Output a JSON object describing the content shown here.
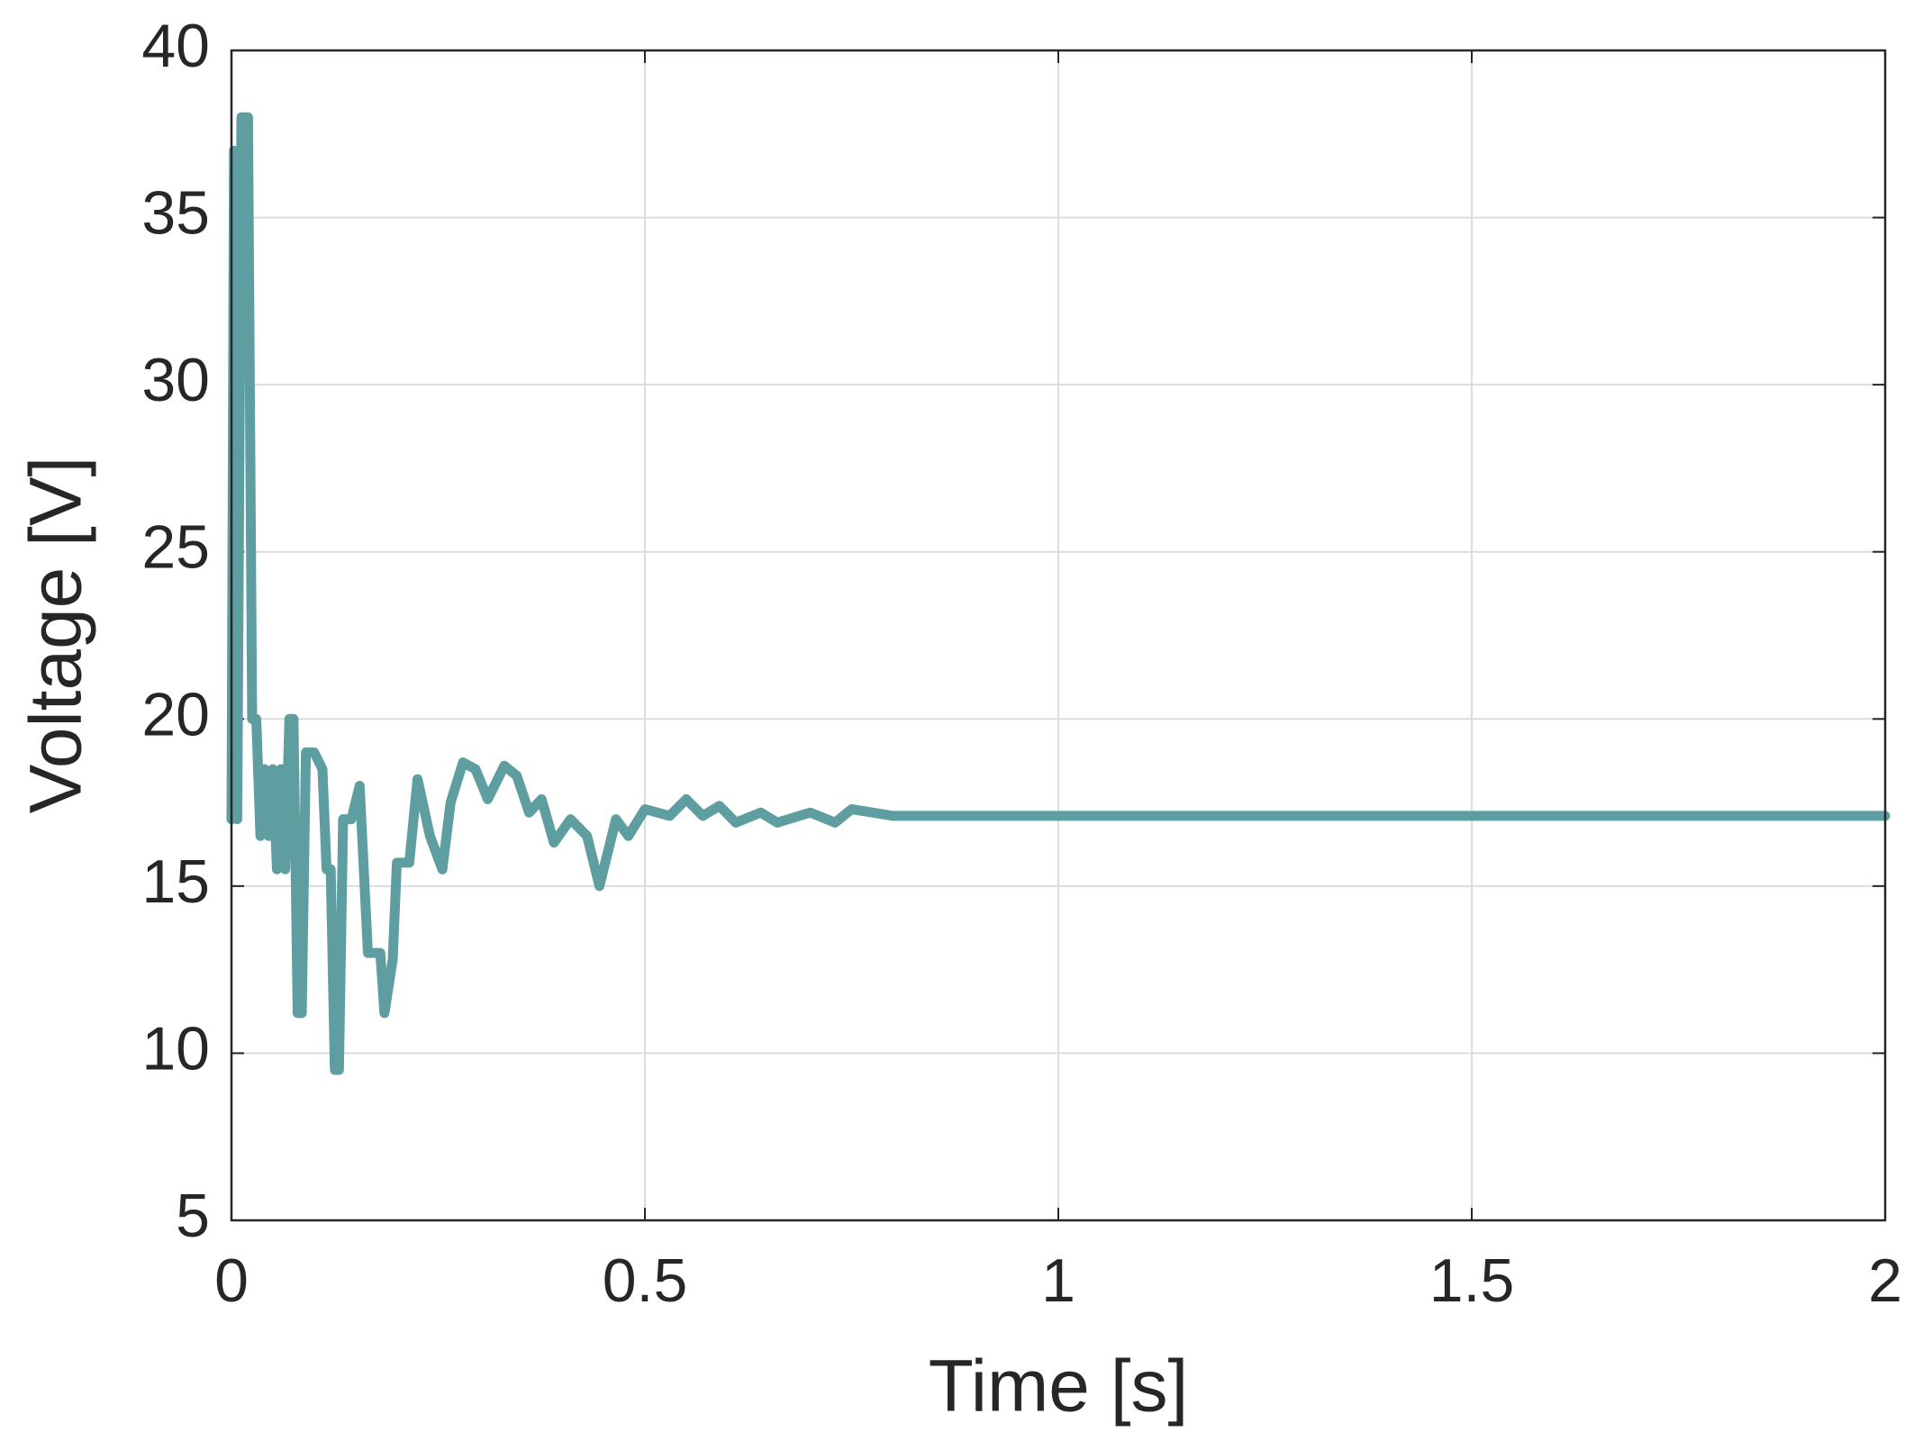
{
  "chart_data": {
    "type": "line",
    "xlabel": "Time [s]",
    "ylabel": "Voltage [V]",
    "xlim": [
      0,
      2
    ],
    "xticks": [
      0,
      0.5,
      1,
      1.5,
      2
    ],
    "ylim": [
      5,
      40
    ],
    "yticks": [
      5,
      10,
      15,
      20,
      25,
      30,
      35,
      40
    ],
    "grid": true,
    "series": [
      {
        "name": "Voltage",
        "color": "#5f9ea0",
        "x": [
          0,
          0.003,
          0.007,
          0.012,
          0.02,
          0.025,
          0.03,
          0.035,
          0.04,
          0.045,
          0.05,
          0.055,
          0.06,
          0.065,
          0.07,
          0.075,
          0.08,
          0.085,
          0.09,
          0.1,
          0.11,
          0.115,
          0.12,
          0.125,
          0.13,
          0.135,
          0.145,
          0.155,
          0.165,
          0.18,
          0.185,
          0.195,
          0.2,
          0.215,
          0.225,
          0.24,
          0.255,
          0.265,
          0.28,
          0.295,
          0.31,
          0.33,
          0.345,
          0.36,
          0.375,
          0.39,
          0.41,
          0.43,
          0.445,
          0.465,
          0.48,
          0.5,
          0.53,
          0.55,
          0.57,
          0.59,
          0.61,
          0.64,
          0.66,
          0.7,
          0.73,
          0.75,
          0.8,
          2
        ],
        "values": [
          17,
          37,
          17,
          38,
          38,
          20,
          20,
          16.5,
          18.5,
          16.5,
          18.5,
          15.5,
          18.5,
          15.5,
          20,
          20,
          11.2,
          11.2,
          19,
          19,
          18.5,
          15.5,
          15.5,
          9.5,
          9.5,
          17,
          17,
          18,
          13,
          13,
          11.2,
          12.8,
          15.7,
          15.7,
          18.2,
          16.5,
          15.5,
          17.5,
          18.7,
          18.5,
          17.6,
          18.6,
          18.3,
          17.2,
          17.6,
          16.3,
          17,
          16.5,
          15,
          17,
          16.5,
          17.3,
          17.1,
          17.6,
          17.1,
          17.4,
          16.9,
          17.2,
          16.9,
          17.2,
          16.9,
          17.3,
          17.1,
          17.1
        ]
      }
    ]
  }
}
